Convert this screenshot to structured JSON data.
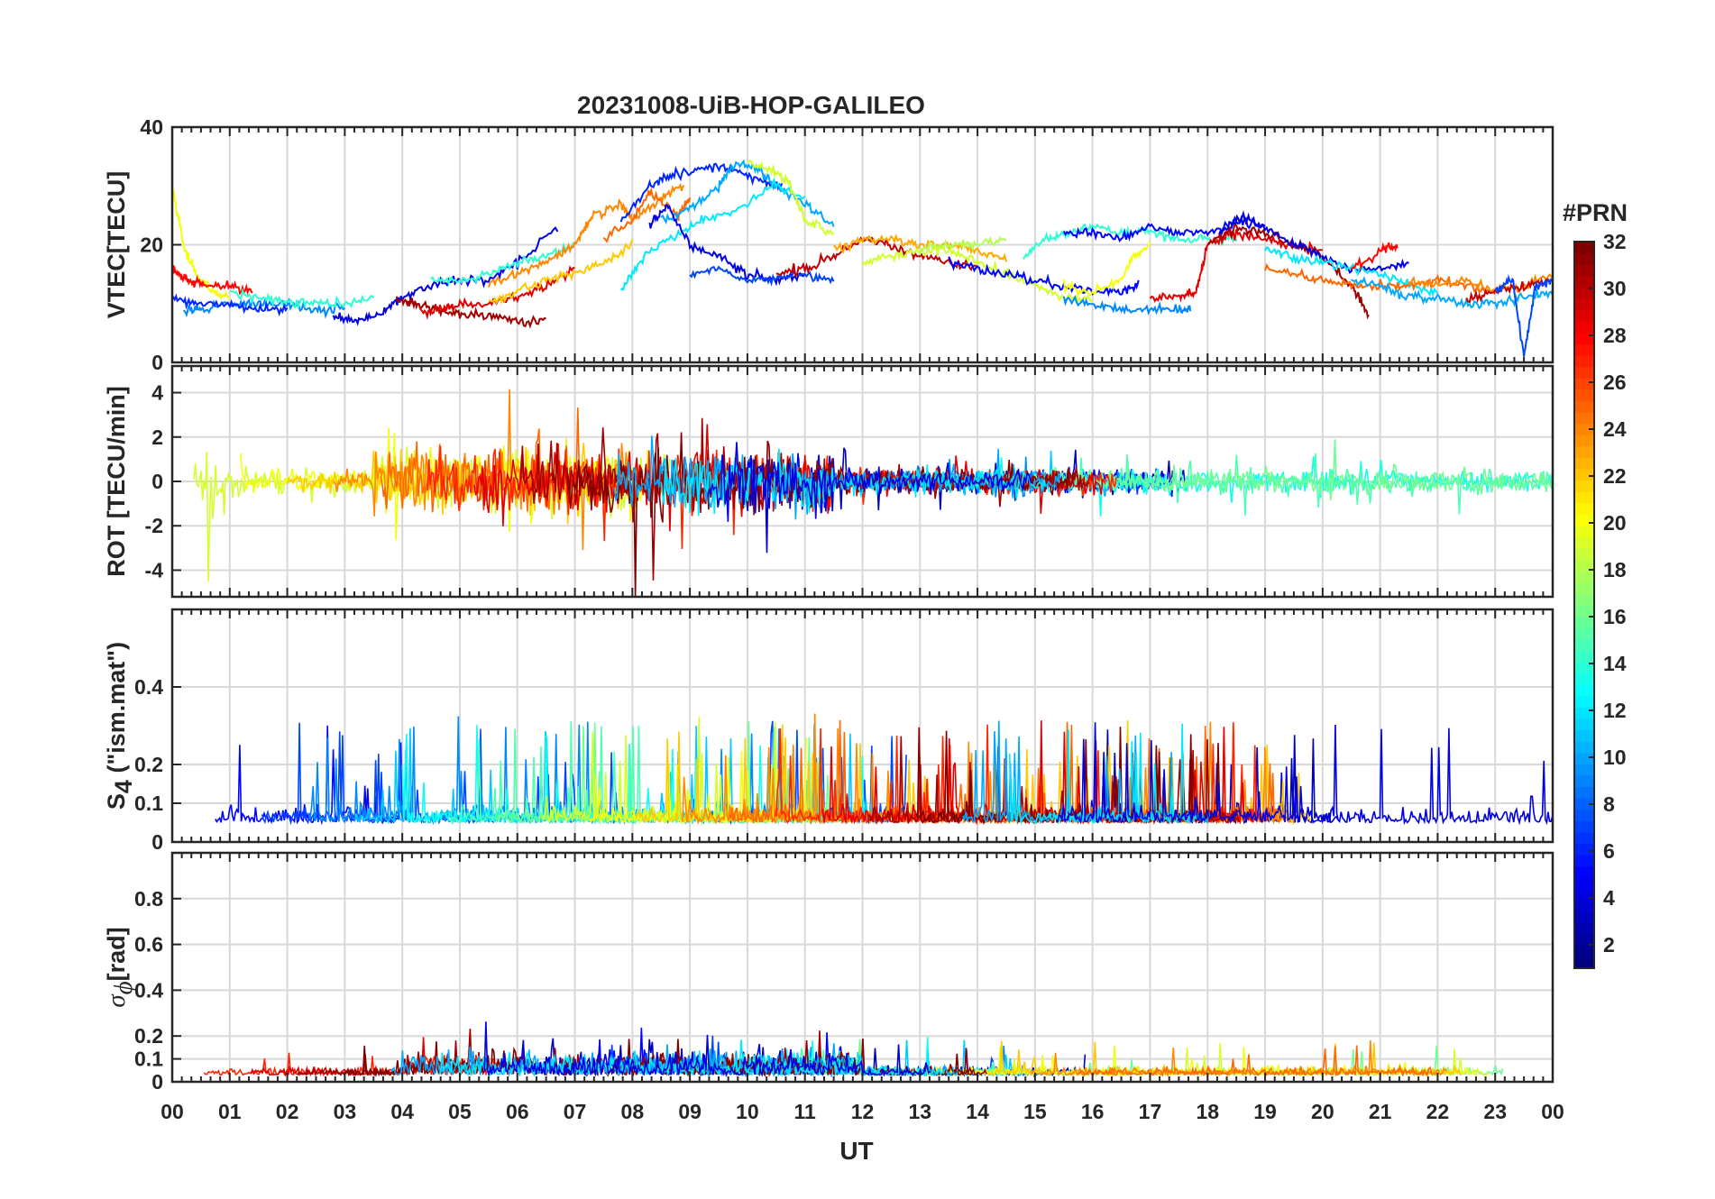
{
  "chart_data": {
    "type": "line",
    "title": "20231008-UiB-HOP-GALILEO",
    "xlabel": "UT",
    "x_ticks": [
      "00",
      "01",
      "02",
      "03",
      "04",
      "05",
      "06",
      "07",
      "08",
      "09",
      "10",
      "11",
      "12",
      "13",
      "14",
      "15",
      "16",
      "17",
      "18",
      "19",
      "20",
      "21",
      "22",
      "23",
      "00"
    ],
    "xlim_hours": [
      0,
      24
    ],
    "grid": true,
    "panels": [
      {
        "id": "vtec",
        "ylabel": "VTEC[TECU]",
        "ylim": [
          0,
          40
        ],
        "yticks": [
          0,
          20,
          40
        ],
        "ytick_labels": [
          "0",
          "20",
          "40"
        ]
      },
      {
        "id": "rot",
        "ylabel": "ROT [TECU/min]",
        "ylim": [
          -5.2,
          5.2
        ],
        "yticks": [
          -4,
          -2,
          0,
          2,
          4
        ],
        "ytick_labels": [
          "-4",
          "-2",
          "0",
          "2",
          "4"
        ]
      },
      {
        "id": "s4",
        "ylabel_main": "S",
        "ylabel_sub": "4",
        "ylabel_rest": " (\"ism.mat\")",
        "ylim": [
          0,
          0.6
        ],
        "yticks": [
          0,
          0.1,
          0.2,
          0.4
        ],
        "ytick_labels": [
          "0",
          "0.1",
          "0.2",
          "0.4"
        ]
      },
      {
        "id": "sigma",
        "ylabel_main": "σ",
        "ylabel_sub": "ϕ",
        "ylabel_rest": "[rad]",
        "ylim": [
          0,
          1
        ],
        "yticks": [
          0,
          0.1,
          0.2,
          0.4,
          0.6,
          0.8
        ],
        "ytick_labels": [
          "0",
          "0.1",
          "0.2",
          "0.4",
          "0.6",
          "0.8"
        ]
      }
    ],
    "colorbar": {
      "label": "#PRN",
      "range": [
        1,
        32
      ],
      "ticks": [
        2,
        4,
        6,
        8,
        10,
        12,
        14,
        16,
        18,
        20,
        22,
        24,
        26,
        28,
        30,
        32
      ],
      "tick_labels": [
        "2",
        "4",
        "6",
        "8",
        "10",
        "12",
        "14",
        "16",
        "18",
        "20",
        "22",
        "24",
        "26",
        "28",
        "30",
        "32"
      ],
      "colormap": "jet"
    },
    "vtec_series": [
      {
        "prn": 20,
        "x": [
          0.0,
          0.2,
          0.4,
          0.7,
          1.0
        ],
        "y": [
          30,
          20,
          15,
          12,
          11
        ]
      },
      {
        "prn": 28,
        "x": [
          0.0,
          0.1,
          0.3,
          0.6,
          1.0,
          1.4
        ],
        "y": [
          16,
          15,
          14,
          13,
          13,
          12
        ]
      },
      {
        "prn": 9,
        "x": [
          0.2,
          0.5,
          1.0,
          1.5,
          2.0,
          2.5,
          3.0
        ],
        "y": [
          9,
          9,
          10,
          10,
          10,
          9,
          9
        ]
      },
      {
        "prn": 14,
        "x": [
          1.0,
          1.5,
          2.0,
          2.5,
          3.0,
          3.5
        ],
        "y": [
          12,
          11,
          10,
          10,
          10,
          11
        ]
      },
      {
        "prn": 6,
        "x": [
          0.0,
          0.4,
          1.0,
          1.5,
          2.0
        ],
        "y": [
          11,
          10,
          10,
          9,
          9
        ]
      },
      {
        "prn": 4,
        "x": [
          2.8,
          3.2,
          3.6,
          4.0,
          4.5,
          5.0,
          5.5,
          6.0,
          6.7
        ],
        "y": [
          8,
          7,
          8,
          11,
          13,
          14,
          14,
          17,
          23
        ]
      },
      {
        "prn": 31,
        "x": [
          3.9,
          4.2,
          4.6,
          5.0,
          5.5,
          6.0,
          6.5
        ],
        "y": [
          11,
          10,
          9,
          8,
          8,
          7,
          7
        ]
      },
      {
        "prn": 29,
        "x": [
          4.3,
          4.7,
          5.0,
          5.5,
          6.0,
          6.5,
          7.0
        ],
        "y": [
          9,
          9,
          10,
          10,
          11,
          13,
          16
        ]
      },
      {
        "prn": 14,
        "x": [
          4.5,
          5.0,
          5.5,
          6.0,
          6.5,
          7.0
        ],
        "y": [
          14,
          14,
          15,
          17,
          18,
          20
        ]
      },
      {
        "prn": 24,
        "x": [
          5.5,
          6.0,
          6.5,
          7.0,
          7.3,
          7.8,
          8.0,
          8.5,
          8.9
        ],
        "y": [
          13,
          15,
          17,
          20,
          25,
          27,
          24,
          28,
          30
        ]
      },
      {
        "prn": 22,
        "x": [
          5.5,
          6.0,
          6.5,
          7.0,
          7.5,
          8.0
        ],
        "y": [
          10,
          12,
          14,
          15,
          17,
          20
        ]
      },
      {
        "prn": 25,
        "x": [
          7.5,
          8.0,
          8.3,
          8.8,
          9.0
        ],
        "y": [
          21,
          24,
          29,
          25,
          28
        ]
      },
      {
        "prn": 6,
        "x": [
          7.8,
          8.3,
          8.7,
          9.2,
          9.7,
          10.2,
          10.6
        ],
        "y": [
          24,
          30,
          32,
          33,
          33,
          31,
          30
        ]
      },
      {
        "prn": 10,
        "x": [
          8.5,
          9.0,
          9.5,
          9.8,
          10.2,
          10.5,
          11.0,
          11.5
        ],
        "y": [
          24,
          26,
          30,
          34,
          33,
          30,
          27,
          23
        ]
      },
      {
        "prn": 12,
        "x": [
          7.8,
          8.2,
          8.8,
          9.2,
          9.8,
          10.5,
          11.0
        ],
        "y": [
          12,
          18,
          22,
          24,
          26,
          30,
          28
        ]
      },
      {
        "prn": 19,
        "x": [
          10.0,
          10.4,
          10.7,
          11.0,
          11.5
        ],
        "y": [
          34,
          33,
          31,
          24,
          22
        ]
      },
      {
        "prn": 4,
        "x": [
          8.3,
          8.6,
          9.0,
          9.5,
          10.0,
          10.5,
          11.0
        ],
        "y": [
          23,
          27,
          20,
          18,
          15,
          14,
          15
        ]
      },
      {
        "prn": 7,
        "x": [
          9.0,
          9.5,
          10.0,
          10.5,
          11.0,
          11.5
        ],
        "y": [
          15,
          16,
          14,
          14,
          15,
          14
        ]
      },
      {
        "prn": 30,
        "x": [
          10.5,
          11.0,
          11.5,
          12.0,
          12.5,
          13.0,
          13.5,
          14.0
        ],
        "y": [
          15,
          16,
          18,
          21,
          20,
          18,
          17,
          16
        ]
      },
      {
        "prn": 23,
        "x": [
          11.5,
          12.0,
          12.5,
          13.0,
          13.5,
          14.0,
          14.5
        ],
        "y": [
          19,
          21,
          21,
          20,
          20,
          19,
          17
        ]
      },
      {
        "prn": 19,
        "x": [
          12.0,
          12.5,
          13.0,
          13.5,
          14.0,
          14.5,
          15.0,
          15.5,
          16.0
        ],
        "y": [
          17,
          18,
          19,
          19,
          17,
          15,
          13,
          11,
          11
        ]
      },
      {
        "prn": 18,
        "x": [
          13.0,
          13.5,
          14.0,
          14.5
        ],
        "y": [
          19,
          20,
          20,
          21
        ]
      },
      {
        "prn": 5,
        "x": [
          13.5,
          14.0,
          14.5,
          15.0,
          15.5,
          16.0,
          16.5,
          16.8
        ],
        "y": [
          17,
          16,
          15,
          14,
          13,
          12,
          12,
          13
        ]
      },
      {
        "prn": 14,
        "x": [
          14.8,
          15.2,
          15.6,
          16.0,
          16.5,
          17.0,
          17.5,
          18.0,
          18.5
        ],
        "y": [
          18,
          21,
          22,
          23,
          22,
          22,
          21,
          21,
          21
        ]
      },
      {
        "prn": 5,
        "x": [
          15.5,
          16.0,
          16.5,
          17.0,
          17.5,
          18.0,
          18.5,
          19.0
        ],
        "y": [
          22,
          22,
          21,
          23,
          22,
          22,
          24,
          23
        ]
      },
      {
        "prn": 20,
        "x": [
          15.5,
          16.0,
          16.5,
          16.7,
          17.0
        ],
        "y": [
          13,
          12,
          14,
          18,
          20
        ]
      },
      {
        "prn": 9,
        "x": [
          15.5,
          16.0,
          16.5,
          17.0,
          17.5,
          17.7
        ],
        "y": [
          11,
          10,
          9,
          9,
          9,
          9
        ]
      },
      {
        "prn": 29,
        "x": [
          17.0,
          17.5,
          17.8,
          18.0,
          18.5,
          19.0,
          19.5,
          20.0
        ],
        "y": [
          11,
          11,
          12,
          20,
          22,
          21,
          20,
          19
        ]
      },
      {
        "prn": 31,
        "x": [
          18.0,
          18.5,
          19.0,
          19.5,
          20.0,
          20.5,
          20.8
        ],
        "y": [
          20,
          23,
          22,
          20,
          18,
          13,
          8
        ]
      },
      {
        "prn": 4,
        "x": [
          18.2,
          18.6,
          19.0,
          19.5,
          20.0,
          20.5,
          21.0,
          21.5
        ],
        "y": [
          22,
          25,
          23,
          20,
          18,
          16,
          16,
          17
        ]
      },
      {
        "prn": 12,
        "x": [
          19.0,
          19.5,
          20.0,
          20.5,
          21.0,
          21.5,
          22.0
        ],
        "y": [
          19,
          18,
          17,
          16,
          15,
          13,
          12
        ]
      },
      {
        "prn": 25,
        "x": [
          19.0,
          19.5,
          20.0,
          20.5,
          21.0,
          21.5,
          22.0,
          22.5,
          23.0
        ],
        "y": [
          16,
          15,
          14,
          13,
          13,
          13,
          14,
          13,
          12
        ]
      },
      {
        "prn": 28,
        "x": [
          20.5,
          21.0,
          21.3
        ],
        "y": [
          16,
          19,
          20
        ]
      },
      {
        "prn": 10,
        "x": [
          20.5,
          21.0,
          21.5,
          22.0,
          22.5,
          23.0,
          23.5,
          24.0
        ],
        "y": [
          14,
          13,
          11,
          11,
          10,
          10,
          11,
          12
        ]
      },
      {
        "prn": 24,
        "x": [
          21.5,
          22.0,
          22.5,
          23.0,
          23.5,
          24.0
        ],
        "y": [
          14,
          13,
          14,
          12,
          13,
          15
        ]
      },
      {
        "prn": 30,
        "x": [
          22.5,
          23.0,
          23.5,
          24.0
        ],
        "y": [
          11,
          12,
          13,
          14
        ]
      },
      {
        "prn": 7,
        "x": [
          23.0,
          23.3,
          23.5,
          23.7,
          24.0
        ],
        "y": [
          12,
          14,
          1,
          13,
          14
        ]
      }
    ]
  }
}
